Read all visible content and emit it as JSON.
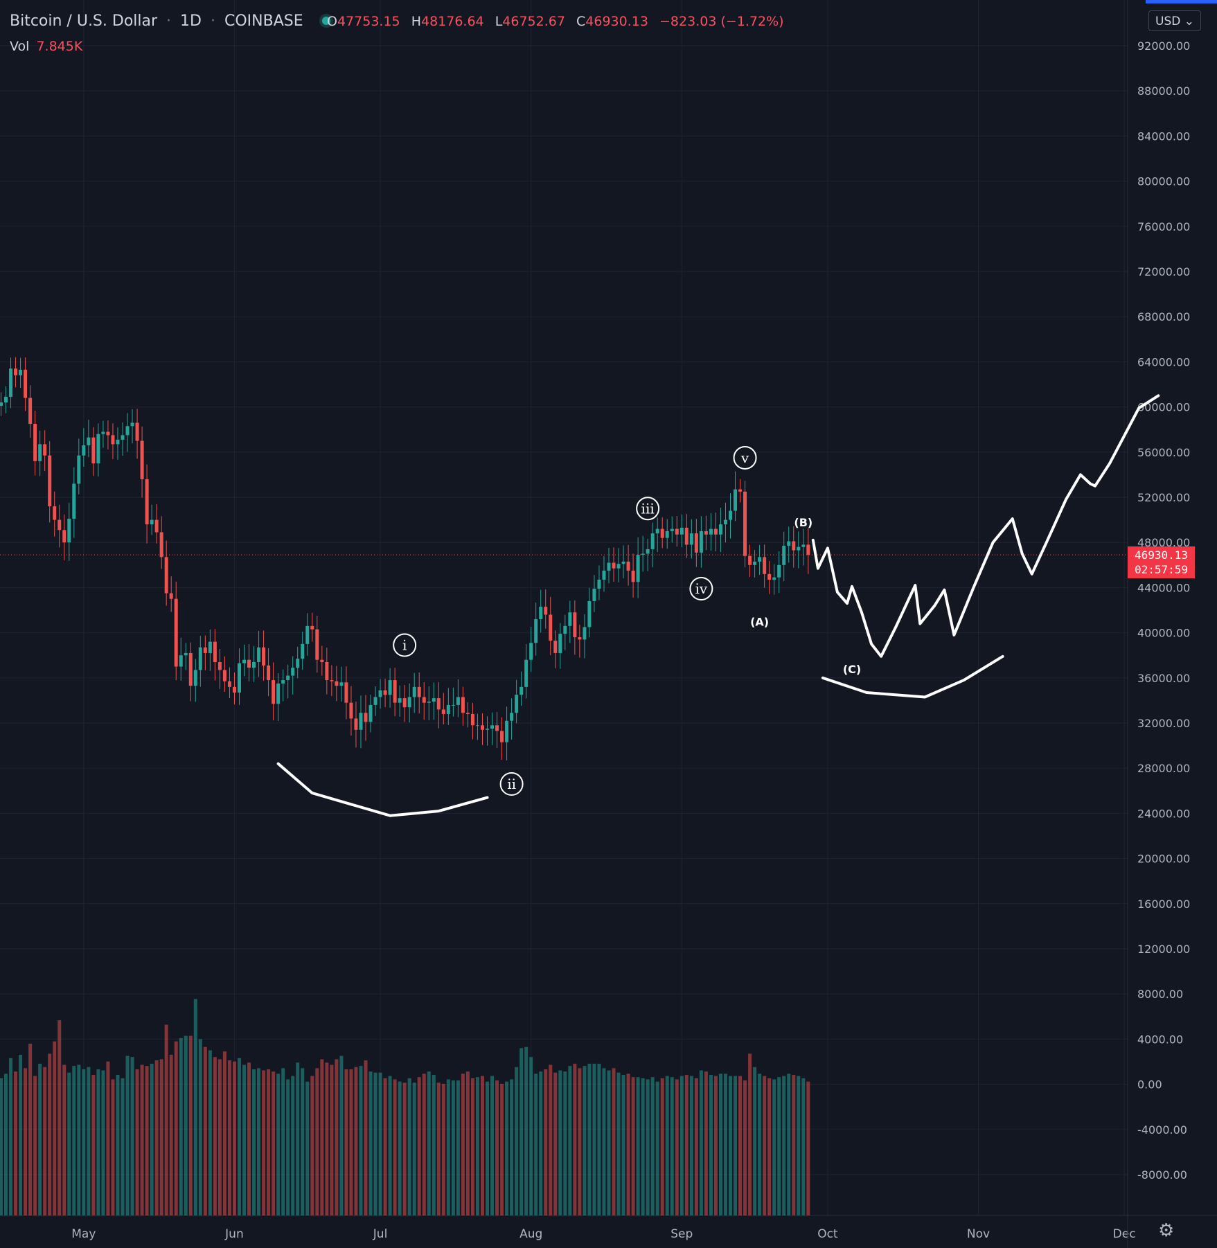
{
  "header": {
    "symbol": "Bitcoin / U.S. Dollar",
    "interval": "1D",
    "exchange": "COINBASE",
    "sep": "·",
    "ohlc": {
      "o_label": "O",
      "o": "47753.15",
      "h_label": "H",
      "h": "48176.64",
      "l_label": "L",
      "l": "46752.67",
      "c_label": "C",
      "c": "46930.13",
      "change": "−823.03 (−1.72%)"
    },
    "vol_label": "Vol",
    "vol_value": "7.845K"
  },
  "currency_button": "USD ⌄",
  "last_price": {
    "value": "46930.13",
    "countdown": "02:57:59"
  },
  "settings_icon": "gear-icon",
  "colors": {
    "bg": "#131722",
    "up": "#26a69a",
    "down": "#ef5350",
    "grid": "#1f2433",
    "text": "#b2b5be",
    "drawing": "#ffffff"
  },
  "chart_data": {
    "type": "candlestick",
    "symbol": "BTCUSD",
    "ylim": [
      8000,
      92000
    ],
    "price_ticks": [
      92000,
      88000,
      84000,
      80000,
      76000,
      72000,
      68000,
      64000,
      60000,
      56000,
      52000,
      48000,
      44000,
      40000,
      36000,
      32000,
      28000,
      24000,
      20000,
      16000,
      12000,
      8000,
      4000,
      0,
      -4000,
      -8000
    ],
    "x_labels": [
      {
        "label": "May",
        "day": 17
      },
      {
        "label": "Jun",
        "day": 48
      },
      {
        "label": "Jul",
        "day": 78
      },
      {
        "label": "Aug",
        "day": 109
      },
      {
        "label": "Sep",
        "day": 140
      },
      {
        "label": "Oct",
        "day": 170
      },
      {
        "label": "Nov",
        "day": 201
      },
      {
        "label": "Dec",
        "day": 231
      }
    ],
    "closes": [
      60400,
      60900,
      63400,
      62800,
      63300,
      60800,
      58500,
      55200,
      56700,
      55700,
      51200,
      50000,
      49100,
      48000,
      50100,
      53200,
      55700,
      56600,
      57300,
      55000,
      57600,
      57800,
      57500,
      56700,
      57100,
      57500,
      58300,
      58600,
      57000,
      53600,
      49600,
      50000,
      48900,
      46700,
      43500,
      43000,
      37000,
      38000,
      38200,
      35300,
      36700,
      38700,
      38200,
      39200,
      37400,
      36700,
      35700,
      35200,
      34700,
      37300,
      37600,
      36900,
      37400,
      38700,
      37100,
      35800,
      33700,
      35500,
      35800,
      36200,
      36900,
      37700,
      39000,
      40600,
      40300,
      37600,
      37400,
      35800,
      35700,
      35300,
      35600,
      33800,
      32400,
      31400,
      32900,
      32100,
      33600,
      34300,
      34900,
      34500,
      35800,
      33800,
      34200,
      33400,
      34300,
      35200,
      34300,
      33800,
      33900,
      34200,
      33200,
      32800,
      33600,
      33600,
      34300,
      32900,
      32800,
      31800,
      31800,
      31400,
      31500,
      31800,
      31300,
      30300,
      32200,
      32900,
      34500,
      35200,
      37600,
      39100,
      41200,
      42300,
      41600,
      39300,
      38200,
      39900,
      40600,
      41800,
      39600,
      39400,
      40500,
      42800,
      43900,
      44700,
      45500,
      46200,
      45700,
      46100,
      46300,
      45500,
      44500,
      46900,
      47000,
      47400,
      48800,
      49200,
      48400,
      49000,
      49200,
      48700,
      49300,
      47800,
      48800,
      47100,
      49000,
      48700,
      49200,
      48700,
      49600,
      50000,
      50800,
      52700,
      52500,
      46800,
      46000,
      46300,
      46700,
      45200,
      44700,
      44900,
      46000,
      47700,
      48100,
      47300,
      47600,
      47800,
      46900
    ],
    "volume_ylim": [
      -10500,
      16500
    ],
    "volume": [
      1800,
      2200,
      3600,
      2400,
      3900,
      2700,
      4900,
      2000,
      3100,
      2800,
      4000,
      5100,
      7000,
      3000,
      2300,
      2900,
      3000,
      2600,
      2800,
      2100,
      2600,
      2500,
      3300,
      1700,
      2100,
      1800,
      3800,
      3700,
      2600,
      3000,
      2900,
      3100,
      3400,
      3500,
      6600,
      3900,
      5100,
      5400,
      5600,
      5600,
      8900,
      5300,
      4600,
      4300,
      3700,
      3500,
      4200,
      3400,
      3300,
      3600,
      3000,
      3200,
      2600,
      2700,
      2500,
      2600,
      2400,
      2200,
      2700,
      1700,
      2000,
      3200,
      2700,
      1500,
      2000,
      2700,
      3500,
      3200,
      3000,
      3500,
      3800,
      2600,
      2600,
      2800,
      2900,
      3400,
      2400,
      2300,
      2300,
      1800,
      2000,
      1700,
      1500,
      1400,
      1800,
      1400,
      1900,
      2200,
      2400,
      2100,
      1400,
      1300,
      1700,
      1600,
      1600,
      2200,
      2400,
      1800,
      1900,
      2000,
      1500,
      2000,
      1600,
      1300,
      1500,
      1700,
      2800,
      4500,
      4600,
      3700,
      2200,
      2400,
      2600,
      3000,
      2300,
      2500,
      2400,
      2900,
      3100,
      2700,
      2900,
      3100,
      3100,
      3100,
      2700,
      2500,
      2700,
      2300,
      2100,
      2200,
      1900,
      1900,
      1800,
      1700,
      1900,
      1500,
      1800,
      2000,
      1900,
      1700,
      2000,
      2100,
      2000,
      1800,
      2500,
      2400,
      2100,
      2000,
      2200,
      2200,
      2000,
      2000,
      2000,
      1600,
      4000,
      2800,
      2200,
      2000,
      1800,
      1700,
      1900,
      2000,
      2200,
      2100,
      2000,
      1800,
      1500
    ],
    "drawings": {
      "wave_labels": [
        {
          "text": "i",
          "circled": true,
          "day": 83,
          "price": 38900
        },
        {
          "text": "ii",
          "circled": true,
          "day": 105,
          "price": 26600
        },
        {
          "text": "iii",
          "circled": true,
          "day": 133,
          "price": 51000
        },
        {
          "text": "iv",
          "circled": true,
          "day": 144,
          "price": 43900
        },
        {
          "text": "v",
          "circled": true,
          "day": 153,
          "price": 55500
        },
        {
          "text": "(A)",
          "circled": false,
          "day": 156,
          "price": 41000
        },
        {
          "text": "(B)",
          "circled": false,
          "day": 165,
          "price": 49800
        },
        {
          "text": "(C)",
          "circled": false,
          "day": 175,
          "price": 36800
        }
      ],
      "arc_1": [
        [
          57,
          28400
        ],
        [
          64,
          25800
        ],
        [
          80,
          23800
        ],
        [
          90,
          24200
        ],
        [
          100,
          25400
        ]
      ],
      "arc_2": [
        [
          169,
          36000
        ],
        [
          178,
          34700
        ],
        [
          190,
          34300
        ],
        [
          198,
          35800
        ],
        [
          206,
          37900
        ]
      ],
      "projection": [
        [
          167,
          48200
        ],
        [
          168,
          45700
        ],
        [
          170,
          47500
        ],
        [
          172,
          43600
        ],
        [
          174,
          42600
        ],
        [
          175,
          44100
        ],
        [
          177,
          41800
        ],
        [
          179,
          39000
        ],
        [
          181,
          37900
        ],
        [
          184,
          40500
        ],
        [
          188,
          44200
        ],
        [
          189,
          40800
        ],
        [
          192,
          42400
        ],
        [
          194,
          43800
        ],
        [
          196,
          39800
        ],
        [
          200,
          44000
        ],
        [
          204,
          48000
        ],
        [
          208,
          50100
        ],
        [
          210,
          47000
        ],
        [
          212,
          45200
        ],
        [
          215,
          48000
        ],
        [
          219,
          51800
        ],
        [
          222,
          54000
        ],
        [
          224,
          53200
        ],
        [
          225,
          53000
        ],
        [
          228,
          55000
        ],
        [
          234,
          59900
        ],
        [
          238,
          61000
        ]
      ]
    }
  }
}
